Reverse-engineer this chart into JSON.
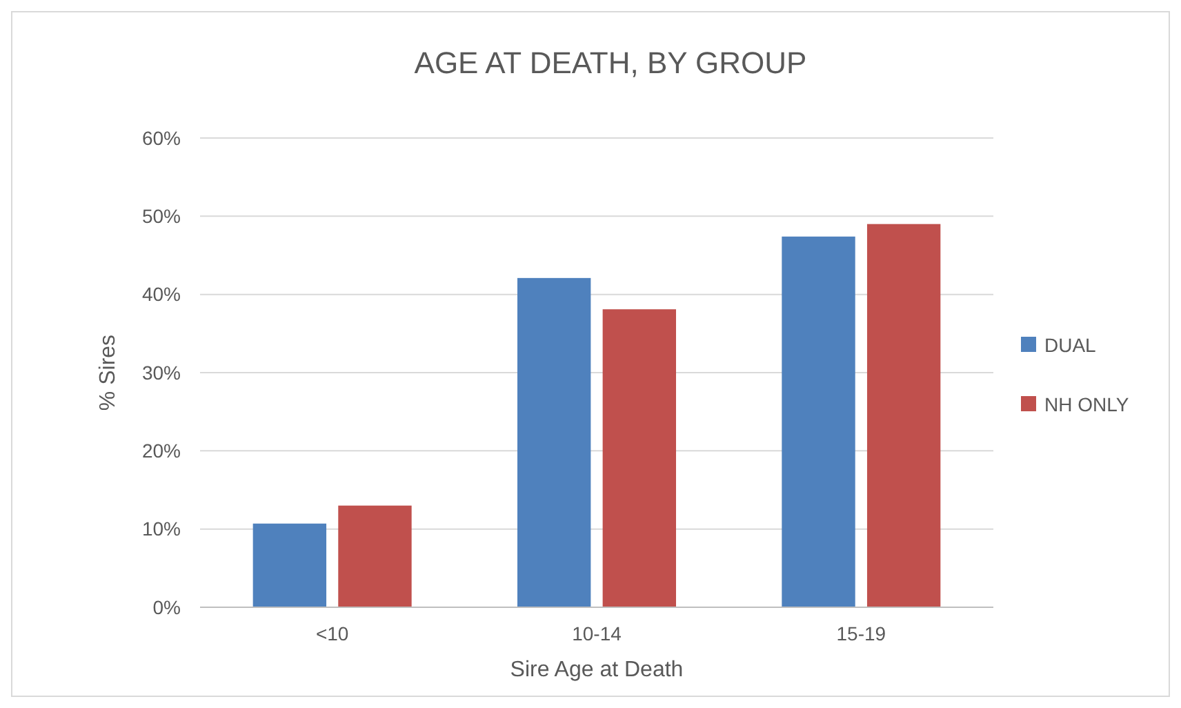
{
  "chart_data": {
    "type": "bar",
    "title": "AGE AT DEATH, BY GROUP",
    "xlabel": "Sire Age at Death",
    "ylabel": "% Sires",
    "categories": [
      "<10",
      "10-14",
      "15-19"
    ],
    "series": [
      {
        "name": "DUAL",
        "color": "#4f81bd",
        "values": [
          10.7,
          42.1,
          47.4
        ]
      },
      {
        "name": "NH ONLY",
        "color": "#c0504d",
        "values": [
          13.0,
          38.1,
          49.0
        ]
      }
    ],
    "ylim": [
      0,
      60
    ],
    "yticks": [
      {
        "value": 0,
        "label": "0%"
      },
      {
        "value": 10,
        "label": "10%"
      },
      {
        "value": 20,
        "label": "20%"
      },
      {
        "value": 30,
        "label": "30%"
      },
      {
        "value": 40,
        "label": "40%"
      },
      {
        "value": 50,
        "label": "50%"
      },
      {
        "value": 60,
        "label": "60%"
      }
    ],
    "grid": "y",
    "legend": "right"
  }
}
